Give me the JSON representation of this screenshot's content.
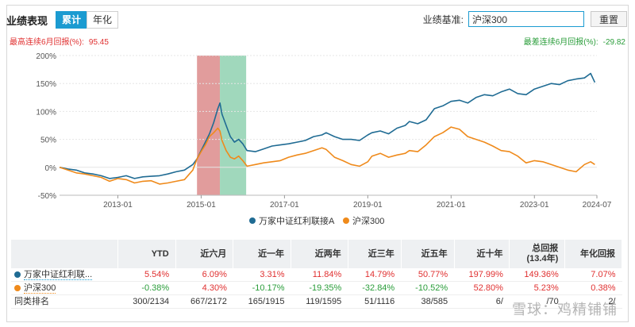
{
  "header": {
    "title": "业绩表现",
    "tabs": [
      {
        "label": "累计",
        "active": true
      },
      {
        "label": "年化",
        "active": false
      }
    ],
    "benchmark_label": "业绩基准:",
    "benchmark_value": "沪深300",
    "reset_label": "重置"
  },
  "stats": {
    "max_gain_label": "最高连续6月回报(%):",
    "max_gain_value": "95.45",
    "max_loss_label": "最差连续6月回报(%):",
    "max_loss_value": "-29.82"
  },
  "colors": {
    "fund": "#1f6b93",
    "benchmark": "#ef8a1b",
    "highlight_gain": "#dc8b8b",
    "highlight_loss": "#8fd1b0",
    "positive": "#e03030",
    "negative": "#2a9d3a"
  },
  "chart_data": {
    "type": "line",
    "xlabel": "",
    "ylabel": "",
    "ylim": [
      -50,
      200
    ],
    "yticks": [
      -50,
      0,
      50,
      100,
      150,
      200
    ],
    "ytick_labels": [
      "-50%",
      "0%",
      "50%",
      "100%",
      "150%",
      "200%"
    ],
    "xticks": [
      2013,
      2015,
      2017,
      2019,
      2021,
      2023,
      2024.5
    ],
    "xtick_labels": [
      "2013-01",
      "2015-01",
      "2017-01",
      "2019-01",
      "2021-01",
      "2023-01",
      "2024-07"
    ],
    "xlim": [
      2011.6,
      2024.5
    ],
    "grid": true,
    "legend_position": "bottom",
    "highlights": [
      {
        "from": 2014.9,
        "to": 2015.45,
        "kind": "gain"
      },
      {
        "from": 2015.45,
        "to": 2016.08,
        "kind": "loss"
      }
    ],
    "series": [
      {
        "name": "万家中证红利联接A",
        "x": [
          2011.6,
          2011.8,
          2012.0,
          2012.2,
          2012.4,
          2012.6,
          2012.8,
          2013.0,
          2013.2,
          2013.4,
          2013.6,
          2013.8,
          2014.0,
          2014.2,
          2014.4,
          2014.6,
          2014.8,
          2014.9,
          2015.0,
          2015.1,
          2015.2,
          2015.3,
          2015.4,
          2015.45,
          2015.5,
          2015.6,
          2015.7,
          2015.8,
          2015.9,
          2016.0,
          2016.1,
          2016.3,
          2016.5,
          2016.7,
          2016.9,
          2017.1,
          2017.3,
          2017.5,
          2017.7,
          2017.9,
          2018.0,
          2018.2,
          2018.4,
          2018.6,
          2018.8,
          2019.0,
          2019.1,
          2019.3,
          2019.5,
          2019.7,
          2019.9,
          2020.0,
          2020.2,
          2020.4,
          2020.6,
          2020.8,
          2021.0,
          2021.2,
          2021.4,
          2021.6,
          2021.8,
          2022.0,
          2022.2,
          2022.4,
          2022.6,
          2022.8,
          2023.0,
          2023.2,
          2023.4,
          2023.6,
          2023.8,
          2024.0,
          2024.2,
          2024.35,
          2024.45
        ],
        "values": [
          0,
          -3,
          -5,
          -10,
          -12,
          -15,
          -20,
          -18,
          -15,
          -20,
          -17,
          -16,
          -15,
          -12,
          -8,
          -5,
          5,
          15,
          30,
          45,
          60,
          80,
          105,
          115,
          95,
          75,
          55,
          45,
          50,
          42,
          30,
          28,
          33,
          38,
          40,
          42,
          45,
          48,
          55,
          58,
          62,
          55,
          50,
          50,
          48,
          58,
          62,
          65,
          60,
          70,
          75,
          82,
          78,
          85,
          105,
          110,
          118,
          120,
          115,
          125,
          130,
          128,
          135,
          140,
          132,
          130,
          140,
          145,
          150,
          148,
          155,
          158,
          160,
          168,
          152
        ]
      },
      {
        "name": "沪深300",
        "x": [
          2011.6,
          2011.8,
          2012.0,
          2012.2,
          2012.4,
          2012.6,
          2012.8,
          2013.0,
          2013.2,
          2013.4,
          2013.6,
          2013.8,
          2014.0,
          2014.2,
          2014.4,
          2014.6,
          2014.8,
          2014.9,
          2015.0,
          2015.1,
          2015.2,
          2015.3,
          2015.4,
          2015.45,
          2015.5,
          2015.6,
          2015.7,
          2015.8,
          2015.9,
          2016.0,
          2016.1,
          2016.3,
          2016.5,
          2016.7,
          2016.9,
          2017.1,
          2017.3,
          2017.5,
          2017.7,
          2017.9,
          2018.0,
          2018.2,
          2018.4,
          2018.6,
          2018.8,
          2019.0,
          2019.1,
          2019.3,
          2019.5,
          2019.7,
          2019.9,
          2020.0,
          2020.2,
          2020.4,
          2020.6,
          2020.8,
          2021.0,
          2021.2,
          2021.4,
          2021.6,
          2021.8,
          2022.0,
          2022.2,
          2022.4,
          2022.6,
          2022.8,
          2023.0,
          2023.2,
          2023.4,
          2023.6,
          2023.8,
          2024.0,
          2024.2,
          2024.35,
          2024.45
        ],
        "values": [
          0,
          -5,
          -10,
          -12,
          -15,
          -18,
          -25,
          -20,
          -22,
          -28,
          -25,
          -24,
          -30,
          -28,
          -25,
          -22,
          -5,
          15,
          28,
          40,
          55,
          62,
          70,
          65,
          48,
          30,
          18,
          15,
          20,
          12,
          2,
          5,
          8,
          10,
          12,
          18,
          22,
          25,
          30,
          35,
          32,
          18,
          12,
          5,
          2,
          10,
          20,
          25,
          18,
          22,
          25,
          30,
          28,
          40,
          55,
          62,
          72,
          68,
          55,
          50,
          45,
          38,
          30,
          28,
          20,
          8,
          12,
          10,
          5,
          0,
          -5,
          -8,
          5,
          10,
          5
        ]
      }
    ]
  },
  "table": {
    "headers": [
      "",
      "YTD",
      "近六月",
      "近一年",
      "近两年",
      "近三年",
      "近五年",
      "近十年",
      "总回报\n(13.4年)",
      "年化回报"
    ],
    "header_total_line1": "总回报",
    "header_total_line2": "(13.4年)",
    "rows": [
      {
        "name": "万家中证红利联...",
        "dot": "fund",
        "values": [
          "5.54%",
          "6.09%",
          "3.31%",
          "11.84%",
          "14.79%",
          "50.77%",
          "197.99%",
          "149.36%",
          "7.07%"
        ],
        "signs": [
          "pos",
          "pos",
          "pos",
          "pos",
          "pos",
          "pos",
          "pos",
          "pos",
          "pos"
        ]
      },
      {
        "name": "沪深300",
        "dot": "benchmark",
        "values": [
          "-0.38%",
          "4.30%",
          "-10.17%",
          "-19.35%",
          "-32.84%",
          "-10.52%",
          "52.80%",
          "5.23%",
          "0.38%"
        ],
        "signs": [
          "neg",
          "pos",
          "neg",
          "neg",
          "neg",
          "neg",
          "pos",
          "pos",
          "pos"
        ]
      },
      {
        "name": "同类排名",
        "dot": null,
        "values": [
          "300/2134",
          "667/2172",
          "165/1915",
          "119/1595",
          "51/1116",
          "38/585",
          "6/",
          "/70",
          "2/"
        ],
        "signs": [
          "rank",
          "rank",
          "rank",
          "rank",
          "rank",
          "rank",
          "rank",
          "rank",
          "rank"
        ]
      }
    ]
  },
  "watermark": "雪球：鸡精铺铺"
}
